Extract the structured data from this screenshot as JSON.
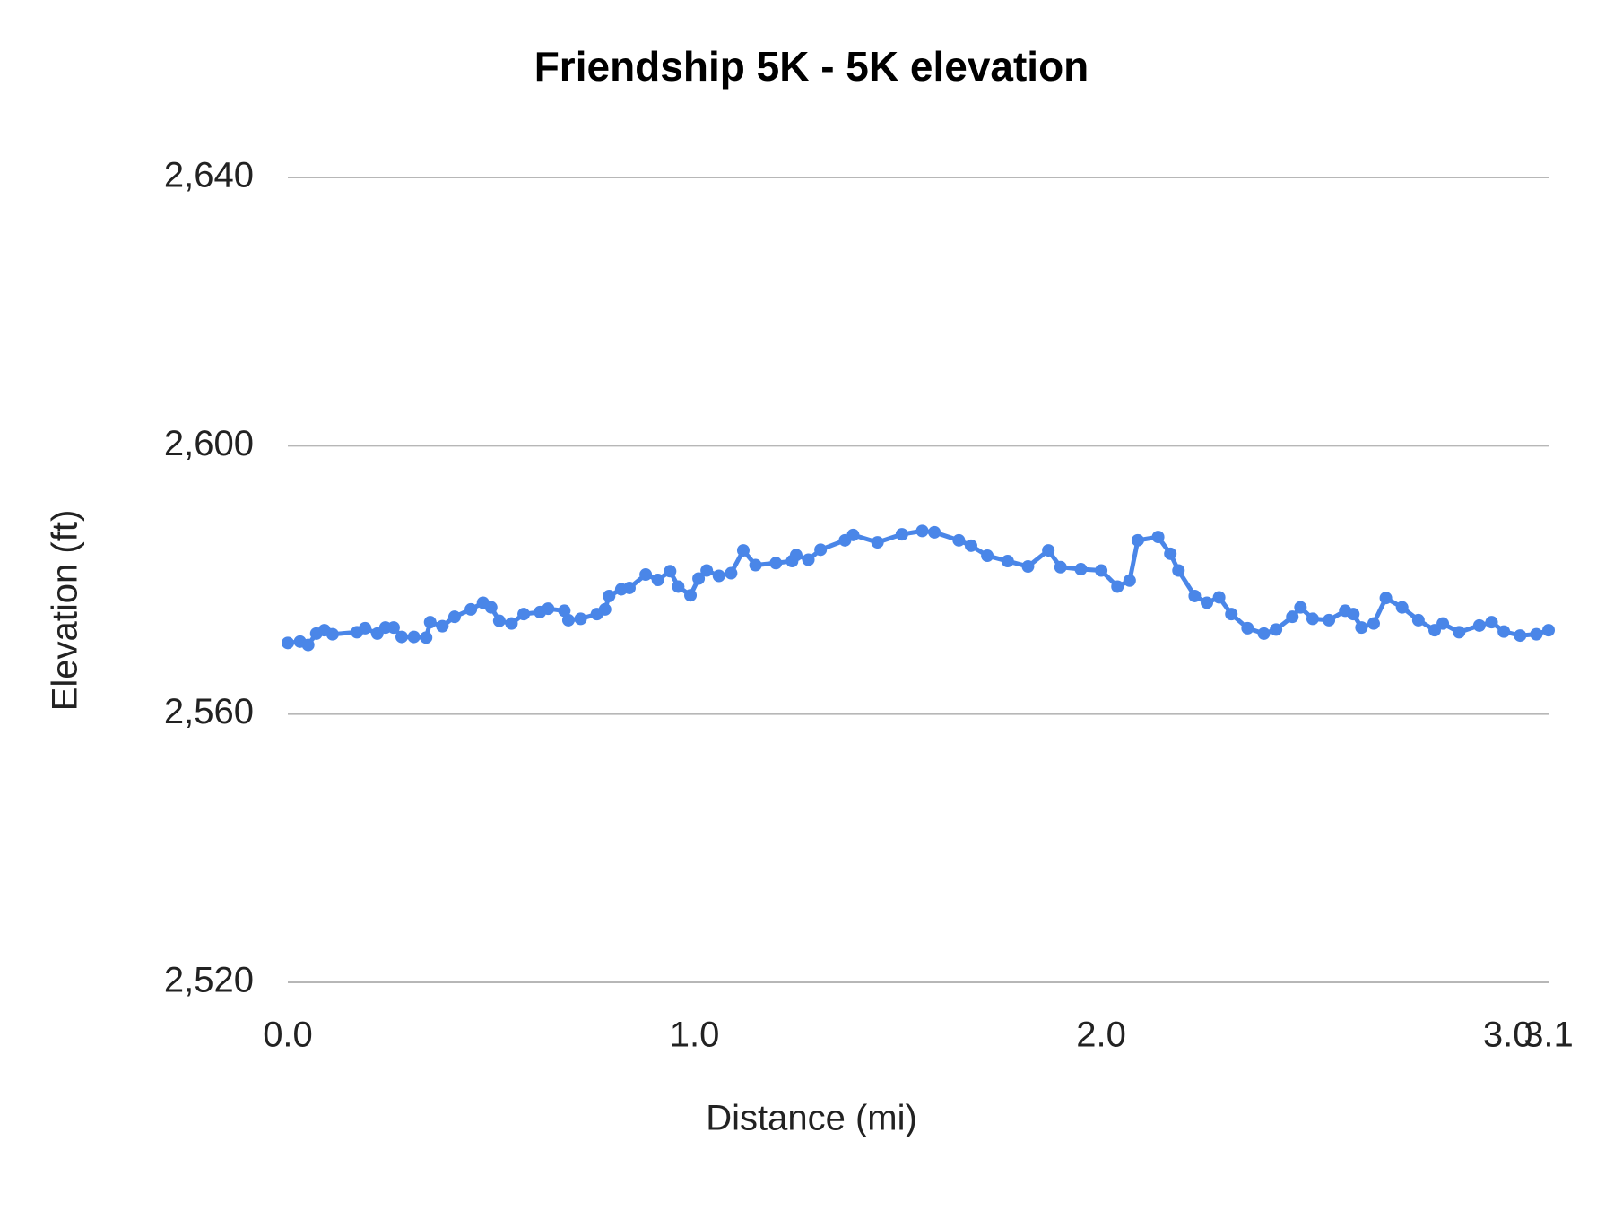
{
  "chart_data": {
    "type": "line",
    "title": "Friendship 5K - 5K elevation",
    "x_label": "Distance (mi)",
    "y_label": "Elevation (ft)",
    "x": [
      0.0,
      0.03,
      0.05,
      0.07,
      0.09,
      0.11,
      0.17,
      0.19,
      0.22,
      0.24,
      0.26,
      0.28,
      0.31,
      0.34,
      0.35,
      0.38,
      0.41,
      0.45,
      0.48,
      0.5,
      0.52,
      0.55,
      0.58,
      0.62,
      0.64,
      0.68,
      0.69,
      0.72,
      0.76,
      0.78,
      0.79,
      0.82,
      0.84,
      0.88,
      0.91,
      0.94,
      0.96,
      0.99,
      1.01,
      1.03,
      1.06,
      1.09,
      1.12,
      1.15,
      1.2,
      1.24,
      1.25,
      1.28,
      1.31,
      1.37,
      1.39,
      1.45,
      1.51,
      1.56,
      1.59,
      1.65,
      1.68,
      1.72,
      1.77,
      1.82,
      1.87,
      1.9,
      1.95,
      2.0,
      2.04,
      2.07,
      2.09,
      2.14,
      2.17,
      2.19,
      2.23,
      2.26,
      2.29,
      2.32,
      2.36,
      2.4,
      2.43,
      2.47,
      2.49,
      2.52,
      2.56,
      2.6,
      2.62,
      2.64,
      2.67,
      2.7,
      2.74,
      2.78,
      2.82,
      2.84,
      2.88,
      2.93,
      2.96,
      2.99,
      3.03,
      3.07,
      3.1
    ],
    "series": [
      {
        "name": "Elevation",
        "color": "#4a86e8",
        "values": [
          2570.6,
          2570.8,
          2570.3,
          2572.0,
          2572.5,
          2571.9,
          2572.2,
          2572.8,
          2572.0,
          2572.9,
          2572.9,
          2571.5,
          2571.5,
          2571.4,
          2573.7,
          2573.1,
          2574.5,
          2575.6,
          2576.6,
          2575.9,
          2573.9,
          2573.5,
          2574.9,
          2575.2,
          2575.7,
          2575.4,
          2574.0,
          2574.2,
          2574.9,
          2575.6,
          2577.6,
          2578.6,
          2578.8,
          2580.8,
          2580.0,
          2581.3,
          2579.0,
          2577.7,
          2580.2,
          2581.4,
          2580.6,
          2581.0,
          2584.4,
          2582.2,
          2582.5,
          2582.8,
          2583.7,
          2583.0,
          2584.5,
          2585.9,
          2586.7,
          2585.6,
          2586.8,
          2587.3,
          2587.1,
          2585.9,
          2585.1,
          2583.6,
          2582.8,
          2582.0,
          2584.4,
          2581.9,
          2581.6,
          2581.4,
          2579.0,
          2579.9,
          2585.9,
          2586.4,
          2583.9,
          2581.4,
          2577.6,
          2576.6,
          2577.4,
          2574.9,
          2572.8,
          2572.0,
          2572.6,
          2574.5,
          2575.9,
          2574.2,
          2574.0,
          2575.4,
          2574.9,
          2572.9,
          2573.5,
          2577.3,
          2575.9,
          2574.0,
          2572.5,
          2573.5,
          2572.2,
          2573.2,
          2573.7,
          2572.3,
          2571.7,
          2571.9,
          2572.5
        ]
      }
    ],
    "xlim": [
      0,
      3.1
    ],
    "xticks": [
      {
        "value": 0,
        "label": "0.0"
      },
      {
        "value": 1,
        "label": "1.0"
      },
      {
        "value": 2,
        "label": "2.0"
      },
      {
        "value": 3,
        "label": "3.0"
      },
      3.1
    ],
    "ylim": [
      2520,
      2640
    ],
    "yticks": [
      {
        "value": 2520,
        "label": "2,520"
      },
      {
        "value": 2560,
        "label": "2,560"
      },
      {
        "value": 2600,
        "label": "2,600"
      },
      {
        "value": 2640,
        "label": "2,640"
      }
    ],
    "grid": true
  }
}
